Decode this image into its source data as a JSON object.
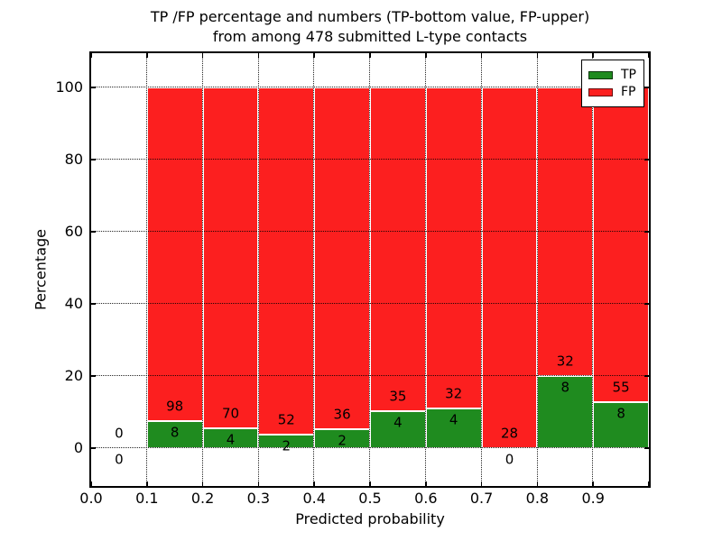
{
  "title": {
    "lines": [
      "TP /FP percentage and numbers (TP-bottom value, FP-upper)",
      "from among 478 submitted L-type contacts"
    ]
  },
  "chart_data": {
    "type": "bar",
    "stacked": true,
    "title": "TP /FP percentage and numbers (TP-bottom value, FP-upper) from among 478 submitted L-type contacts",
    "xlabel": "Predicted probability",
    "ylabel": "Percentage",
    "total_contacts": 478,
    "xlim": [
      0.0,
      1.0
    ],
    "ylim": [
      -10.5,
      109.5
    ],
    "grid": true,
    "legend_position": "upper right",
    "x_tick_values": [
      0.0,
      0.1,
      0.2,
      0.3,
      0.4,
      0.5,
      0.6,
      0.7,
      0.8,
      0.9,
      1.0
    ],
    "x_tick_labels": [
      "0.0",
      "0.1",
      "0.2",
      "0.3",
      "0.4",
      "0.5",
      "0.6",
      "0.7",
      "0.8",
      "0.9"
    ],
    "x_label_values": [
      0.0,
      0.1,
      0.2,
      0.3,
      0.4,
      0.5,
      0.6,
      0.7,
      0.8,
      0.9
    ],
    "y_tick_values": [
      0,
      20,
      40,
      60,
      80,
      100
    ],
    "y_tick_labels": [
      "0",
      "20",
      "40",
      "60",
      "80",
      "100"
    ],
    "x_grid_values": [
      0.1,
      0.2,
      0.3,
      0.4,
      0.5,
      0.6,
      0.7,
      0.8,
      0.9
    ],
    "y_grid_values": [
      0,
      20,
      40,
      60,
      80,
      100
    ],
    "series": [
      {
        "name": "TP",
        "color": "#1f8b1f"
      },
      {
        "name": "FP",
        "color": "#fc1f1f"
      }
    ],
    "bins": [
      {
        "x0": 0.0,
        "x1": 0.1,
        "tp": 0,
        "fp": 0
      },
      {
        "x0": 0.1,
        "x1": 0.2,
        "tp": 8,
        "fp": 98
      },
      {
        "x0": 0.2,
        "x1": 0.3,
        "tp": 4,
        "fp": 70
      },
      {
        "x0": 0.3,
        "x1": 0.4,
        "tp": 2,
        "fp": 52
      },
      {
        "x0": 0.4,
        "x1": 0.5,
        "tp": 2,
        "fp": 36
      },
      {
        "x0": 0.5,
        "x1": 0.6,
        "tp": 4,
        "fp": 35
      },
      {
        "x0": 0.6,
        "x1": 0.7,
        "tp": 4,
        "fp": 32
      },
      {
        "x0": 0.7,
        "x1": 0.8,
        "tp": 0,
        "fp": 28
      },
      {
        "x0": 0.8,
        "x1": 0.9,
        "tp": 8,
        "fp": 32
      },
      {
        "x0": 0.9,
        "x1": 1.0,
        "tp": 8,
        "fp": 55
      }
    ]
  }
}
